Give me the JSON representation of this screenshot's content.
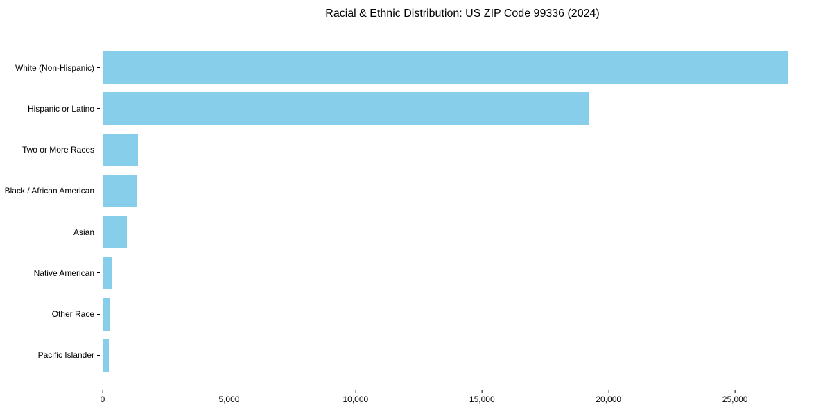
{
  "chart_data": {
    "type": "bar",
    "orientation": "horizontal",
    "title": "Racial & Ethnic Distribution: US ZIP Code 99336 (2024)",
    "xlabel": "",
    "ylabel": "",
    "categories": [
      "White (Non-Hispanic)",
      "Hispanic or Latino",
      "Two or More Races",
      "Black / African American",
      "Asian",
      "Native American",
      "Other Race",
      "Pacific Islander"
    ],
    "values": [
      27100,
      19250,
      1400,
      1350,
      950,
      375,
      265,
      240
    ],
    "xlim": [
      0,
      28450
    ],
    "xticks": [
      0,
      5000,
      10000,
      15000,
      20000,
      25000
    ],
    "xtick_labels": [
      "0",
      "5,000",
      "10,000",
      "15,000",
      "20,000",
      "25,000"
    ],
    "bar_color": "#87CEEB",
    "background_color": "#ffffff",
    "axis_color": "#000000",
    "grid": false,
    "legend": null
  }
}
